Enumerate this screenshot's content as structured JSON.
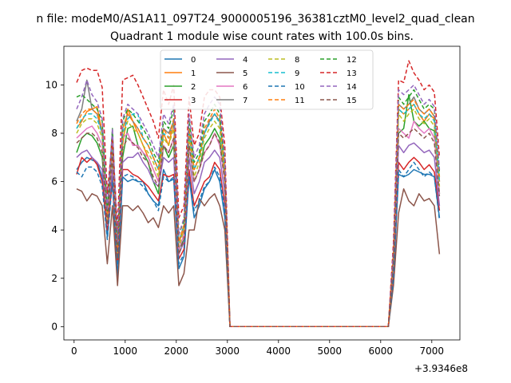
{
  "figure": {
    "suptitle": "n file: modeM0/AS1A11_097T24_9000005196_36381cztM0_level2_quad_clean"
  },
  "chart_data": {
    "type": "line",
    "title": "Quadrant 1 module wise count rates with 100.0s bins.",
    "xlabel": "",
    "ylabel": "",
    "x_offset_label": "+3.9346e8",
    "xlim": [
      -200,
      7550
    ],
    "ylim": [
      -0.55,
      11.6
    ],
    "xticks": [
      0,
      1000,
      2000,
      3000,
      4000,
      5000,
      6000,
      7000
    ],
    "yticks": [
      0,
      2,
      4,
      6,
      8,
      10
    ],
    "grid": false,
    "legend": {
      "placement": "top-center",
      "ncol": 4
    },
    "x": [
      50,
      150,
      250,
      350,
      450,
      550,
      650,
      750,
      850,
      950,
      1050,
      1150,
      1250,
      1350,
      1450,
      1550,
      1650,
      1750,
      1850,
      1950,
      2050,
      2150,
      2250,
      2350,
      2450,
      2550,
      2650,
      2750,
      2850,
      2950,
      3050,
      3150,
      6150,
      6250,
      6350,
      6450,
      6550,
      6650,
      6750,
      6850,
      6950,
      7050,
      7150
    ],
    "series": [
      {
        "name": "0",
        "color": "#1f77b4",
        "dash": "solid",
        "values": [
          6.5,
          6.8,
          7.0,
          6.9,
          6.8,
          6.2,
          3.7,
          6.2,
          2.0,
          6.2,
          6.0,
          6.1,
          6.0,
          6.0,
          5.5,
          5.2,
          5.0,
          6.5,
          6.0,
          6.1,
          2.4,
          2.9,
          6.2,
          4.5,
          5.0,
          5.7,
          6.0,
          6.5,
          6.0,
          4.5,
          0.0,
          0.0,
          0.0,
          2.0,
          6.3,
          6.2,
          6.3,
          6.5,
          6.4,
          6.3,
          6.3,
          6.2,
          4.5
        ]
      },
      {
        "name": "1",
        "color": "#ff7f0e",
        "dash": "solid",
        "values": [
          8.2,
          8.5,
          8.9,
          9.0,
          9.1,
          8.0,
          4.5,
          7.5,
          3.0,
          7.5,
          9.0,
          8.5,
          8.0,
          7.5,
          7.0,
          6.5,
          6.0,
          8.0,
          7.5,
          8.5,
          3.5,
          4.0,
          8.0,
          6.5,
          7.0,
          8.0,
          8.5,
          8.8,
          8.5,
          6.5,
          0.0,
          0.0,
          0.0,
          3.0,
          9.0,
          8.8,
          9.0,
          9.2,
          8.8,
          8.5,
          8.8,
          8.6,
          6.0
        ]
      },
      {
        "name": "2",
        "color": "#2ca02c",
        "dash": "solid",
        "values": [
          7.2,
          7.8,
          8.0,
          7.9,
          7.6,
          7.0,
          4.2,
          7.0,
          2.8,
          7.0,
          8.2,
          8.3,
          7.5,
          7.2,
          6.8,
          6.0,
          5.5,
          7.5,
          7.0,
          7.5,
          3.2,
          3.6,
          7.5,
          6.0,
          6.5,
          7.5,
          7.8,
          8.2,
          7.8,
          6.0,
          0.0,
          0.0,
          0.0,
          2.5,
          8.0,
          8.2,
          9.6,
          8.5,
          8.3,
          8.5,
          8.2,
          8.1,
          5.5
        ]
      },
      {
        "name": "3",
        "color": "#d62728",
        "dash": "solid",
        "values": [
          6.3,
          7.0,
          6.8,
          7.0,
          6.7,
          6.0,
          4.0,
          6.0,
          2.6,
          6.5,
          6.5,
          6.3,
          6.2,
          6.0,
          5.8,
          5.5,
          5.2,
          6.3,
          6.2,
          6.3,
          2.8,
          3.2,
          6.5,
          5.0,
          5.5,
          6.0,
          6.2,
          6.8,
          6.5,
          5.0,
          0.0,
          0.0,
          0.0,
          2.2,
          6.8,
          6.5,
          6.8,
          7.0,
          6.8,
          6.5,
          6.7,
          6.4,
          4.8
        ]
      },
      {
        "name": "4",
        "color": "#9467bd",
        "dash": "solid",
        "values": [
          7.0,
          7.2,
          7.3,
          7.0,
          6.8,
          6.5,
          4.5,
          6.5,
          3.0,
          6.8,
          7.0,
          7.0,
          7.2,
          6.8,
          6.5,
          6.0,
          5.8,
          7.0,
          6.8,
          7.0,
          3.0,
          3.5,
          7.0,
          5.5,
          6.0,
          6.8,
          7.0,
          7.3,
          7.0,
          5.5,
          0.0,
          0.0,
          0.0,
          2.5,
          7.5,
          7.2,
          7.5,
          7.6,
          7.4,
          7.2,
          7.3,
          7.0,
          5.0
        ]
      },
      {
        "name": "5",
        "color": "#8c564b",
        "dash": "solid",
        "values": [
          5.7,
          5.6,
          5.2,
          5.5,
          5.4,
          5.0,
          2.6,
          5.0,
          1.7,
          5.0,
          5.0,
          4.8,
          5.0,
          4.7,
          4.3,
          4.5,
          4.1,
          5.0,
          4.7,
          5.0,
          1.7,
          2.2,
          4.0,
          4.0,
          5.3,
          5.0,
          5.3,
          5.5,
          5.0,
          4.0,
          0.0,
          0.0,
          0.0,
          1.7,
          4.7,
          5.7,
          5.2,
          5.0,
          5.5,
          5.2,
          5.3,
          5.0,
          3.0
        ]
      },
      {
        "name": "6",
        "color": "#e377c2",
        "dash": "solid",
        "values": [
          7.8,
          8.0,
          8.2,
          8.3,
          8.0,
          7.5,
          4.2,
          7.2,
          3.0,
          7.8,
          8.0,
          7.5,
          7.5,
          7.2,
          7.0,
          6.5,
          6.0,
          7.5,
          7.2,
          7.8,
          3.2,
          3.8,
          7.5,
          6.0,
          6.5,
          7.2,
          7.5,
          8.0,
          7.5,
          6.0,
          0.0,
          0.0,
          0.0,
          2.8,
          8.2,
          8.0,
          7.8,
          8.5,
          8.2,
          8.0,
          8.2,
          7.8,
          5.5
        ]
      },
      {
        "name": "7",
        "color": "#7f7f7f",
        "dash": "solid",
        "values": [
          8.5,
          9.0,
          10.2,
          9.0,
          8.8,
          8.0,
          4.5,
          7.8,
          3.2,
          8.2,
          8.8,
          8.5,
          8.2,
          7.8,
          7.5,
          7.0,
          6.5,
          8.2,
          8.0,
          8.5,
          3.5,
          4.2,
          8.2,
          6.5,
          7.0,
          8.0,
          8.5,
          8.8,
          8.5,
          6.5,
          0.0,
          0.0,
          0.0,
          3.0,
          9.2,
          9.0,
          9.2,
          9.5,
          9.0,
          8.8,
          9.0,
          8.7,
          6.0
        ]
      },
      {
        "name": "8",
        "color": "#bcbd22",
        "dash": "dashed",
        "values": [
          8.0,
          8.4,
          8.6,
          8.6,
          8.4,
          7.8,
          4.4,
          7.6,
          3.0,
          7.8,
          8.5,
          8.2,
          8.0,
          7.5,
          7.2,
          6.8,
          6.2,
          7.8,
          7.5,
          8.2,
          3.3,
          4.0,
          7.8,
          6.2,
          6.8,
          7.8,
          8.2,
          8.5,
          8.2,
          6.2,
          0.0,
          0.0,
          0.0,
          2.8,
          8.8,
          8.5,
          8.8,
          9.0,
          8.6,
          8.4,
          8.6,
          8.3,
          5.8
        ]
      },
      {
        "name": "9",
        "color": "#17becf",
        "dash": "dashed",
        "values": [
          8.2,
          8.6,
          8.8,
          8.8,
          8.6,
          8.0,
          4.6,
          7.8,
          3.2,
          8.0,
          8.6,
          8.8,
          8.8,
          7.8,
          7.5,
          7.0,
          6.5,
          8.0,
          7.8,
          8.5,
          3.5,
          4.2,
          8.0,
          6.5,
          7.0,
          8.0,
          8.4,
          8.8,
          8.4,
          6.5,
          0.0,
          0.0,
          0.0,
          2.8,
          9.0,
          8.8,
          9.0,
          9.2,
          8.8,
          8.6,
          8.8,
          8.5,
          6.0
        ]
      },
      {
        "name": "10",
        "color": "#1f77b4",
        "dash": "dashed",
        "values": [
          6.4,
          6.2,
          6.6,
          6.6,
          6.4,
          5.8,
          3.6,
          6.0,
          2.4,
          6.2,
          6.3,
          6.2,
          6.0,
          5.8,
          5.5,
          5.2,
          4.8,
          6.2,
          6.0,
          6.2,
          2.6,
          3.0,
          6.2,
          4.8,
          5.2,
          5.8,
          6.0,
          6.6,
          6.2,
          4.8,
          0.0,
          0.0,
          0.0,
          2.0,
          6.5,
          6.2,
          6.5,
          6.8,
          6.5,
          6.2,
          6.4,
          6.2,
          4.4
        ]
      },
      {
        "name": "11",
        "color": "#ff7f0e",
        "dash": "dashed",
        "values": [
          8.4,
          8.8,
          9.0,
          9.0,
          8.8,
          8.2,
          4.6,
          8.0,
          3.2,
          8.2,
          8.8,
          8.5,
          8.2,
          7.8,
          7.5,
          7.0,
          6.5,
          8.2,
          7.8,
          8.6,
          3.5,
          4.2,
          8.2,
          6.5,
          7.0,
          8.2,
          8.6,
          9.0,
          8.6,
          6.5,
          0.0,
          0.0,
          0.0,
          3.0,
          9.2,
          9.0,
          9.2,
          9.4,
          9.0,
          8.8,
          9.0,
          8.7,
          6.2
        ]
      },
      {
        "name": "12",
        "color": "#2ca02c",
        "dash": "dashed",
        "values": [
          9.5,
          9.6,
          9.4,
          9.2,
          9.0,
          8.5,
          4.8,
          8.2,
          3.4,
          8.5,
          9.0,
          8.8,
          8.5,
          8.2,
          7.8,
          7.2,
          6.8,
          8.5,
          8.2,
          9.0,
          3.8,
          4.4,
          8.6,
          6.8,
          7.2,
          8.5,
          8.8,
          9.2,
          8.8,
          6.8,
          0.0,
          0.0,
          0.0,
          3.2,
          9.5,
          9.2,
          9.5,
          9.8,
          9.4,
          9.0,
          9.2,
          9.0,
          6.4
        ]
      },
      {
        "name": "13",
        "color": "#d62728",
        "dash": "dashed",
        "values": [
          10.1,
          10.6,
          10.7,
          10.6,
          10.6,
          9.9,
          5.5,
          7.8,
          4.0,
          10.2,
          10.3,
          10.4,
          10.0,
          9.5,
          9.0,
          8.5,
          7.8,
          9.8,
          9.2,
          10.0,
          4.5,
          5.0,
          9.5,
          7.5,
          8.0,
          9.5,
          9.8,
          9.8,
          9.5,
          7.5,
          0.0,
          0.0,
          0.0,
          3.5,
          10.2,
          10.1,
          11.0,
          10.5,
          10.2,
          9.8,
          10.0,
          9.7,
          7.0
        ]
      },
      {
        "name": "14",
        "color": "#9467bd",
        "dash": "dashed",
        "values": [
          9.0,
          9.5,
          10.2,
          9.6,
          9.3,
          8.6,
          4.8,
          8.2,
          3.5,
          8.6,
          9.2,
          9.0,
          8.8,
          8.4,
          8.0,
          7.5,
          7.0,
          8.8,
          8.4,
          9.2,
          3.8,
          4.5,
          8.8,
          7.0,
          7.5,
          8.8,
          9.2,
          9.5,
          9.2,
          7.0,
          0.0,
          0.0,
          0.0,
          3.2,
          9.8,
          9.6,
          9.8,
          10.0,
          9.6,
          9.2,
          9.4,
          9.1,
          6.5
        ]
      },
      {
        "name": "15",
        "color": "#8c564b",
        "dash": "dashed",
        "values": [
          7.6,
          7.8,
          8.0,
          8.0,
          7.8,
          7.2,
          4.2,
          7.2,
          2.8,
          7.4,
          7.8,
          7.6,
          7.4,
          7.0,
          6.8,
          6.2,
          5.8,
          7.5,
          7.2,
          7.8,
          3.0,
          3.6,
          7.5,
          6.0,
          6.5,
          7.2,
          7.5,
          8.0,
          7.6,
          6.0,
          0.0,
          0.0,
          0.0,
          2.6,
          8.0,
          7.8,
          8.0,
          8.2,
          8.0,
          7.8,
          8.0,
          7.6,
          5.4
        ]
      }
    ]
  }
}
